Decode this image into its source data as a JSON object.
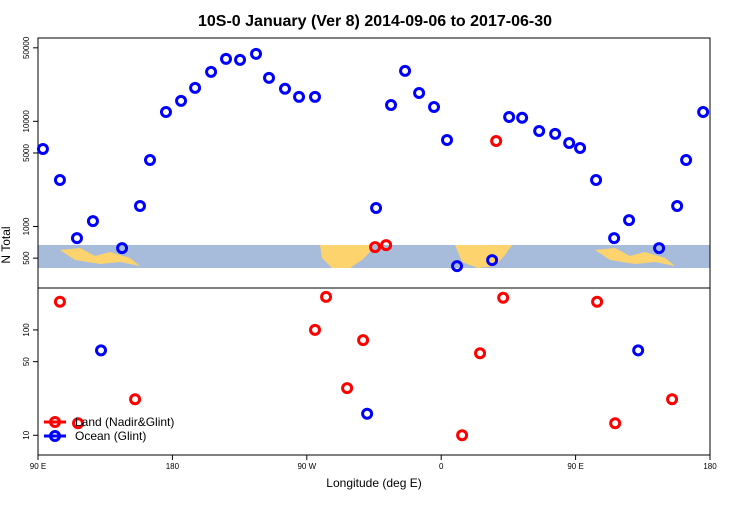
{
  "chart_data": [
    {
      "type": "scatter",
      "title": "10S-0 January (Ver 8)   2014-09-06 to 2017-06-30",
      "ylabel": "N Total",
      "log_y": true,
      "xlim": [
        90,
        540
      ],
      "ylim": [
        260,
        62000
      ],
      "yticks": [
        500,
        1000,
        5000,
        10000,
        50000
      ],
      "series": [
        {
          "name": "Land (Nadir&Glint)",
          "color": "#ff0000",
          "x": [
            315.7,
            323.1,
            396.8
          ],
          "values": [
            637,
            665,
            6500
          ]
        },
        {
          "name": "Ocean (Glint)",
          "color": "#0000ff",
          "x": [
            93.3,
            104.7,
            116.1,
            126.8,
            146.3,
            158.3,
            165,
            175.7,
            185.8,
            195.2,
            205.9,
            215.9,
            225.3,
            236,
            244.7,
            255.4,
            264.8,
            275.5,
            316.4,
            326.4,
            335.8,
            345.2,
            355.2,
            363.9,
            370.6,
            394.1,
            405.5,
            414.2,
            425.6,
            436.3,
            445.7,
            453,
            463.7,
            475.8,
            485.8,
            505.9,
            518,
            524,
            535.4
          ],
          "values": [
            5460,
            2770,
            775,
            1125,
            622,
            1565,
            4290,
            12280,
            15640,
            20800,
            29500,
            39300,
            38400,
            43800,
            25900,
            20400,
            17100,
            17100,
            1500,
            14300,
            30200,
            18600,
            13700,
            6650,
            420,
            479,
            11000,
            10800,
            8100,
            7590,
            6220,
            5580,
            2770,
            775,
            1150,
            622,
            1565,
            4290,
            12280
          ]
        }
      ]
    },
    {
      "type": "scatter",
      "xlabel": "Longitude (deg E)",
      "log_y": true,
      "legend": "bottom-left",
      "xlim": [
        90,
        540
      ],
      "xticks": [
        {
          "value": 90,
          "label": "90 E"
        },
        180,
        {
          "value": 270,
          "label": "90 W"
        },
        {
          "value": 360,
          "label": "0"
        },
        {
          "value": 450,
          "label": "90 E"
        },
        {
          "value": 540,
          "label": "180"
        }
      ],
      "ylim": [
        6.5,
        250
      ],
      "yticks": [
        10,
        50,
        100
      ],
      "series": [
        {
          "name": "Land (Nadir&Glint)",
          "color": "#ff0000",
          "x": [
            104.7,
            116.8,
            155,
            275.5,
            282.9,
            297,
            307.7,
            374,
            386,
            401.5,
            464.4,
            476.5,
            514.6
          ],
          "values": [
            185,
            13,
            22,
            100,
            206,
            28,
            80,
            10,
            60,
            202,
            185,
            13,
            22
          ]
        },
        {
          "name": "Ocean (Glint)",
          "color": "#0000ff",
          "x": [
            132.2,
            310.4,
            491.9
          ],
          "values": [
            64,
            16,
            64
          ]
        }
      ]
    }
  ]
}
